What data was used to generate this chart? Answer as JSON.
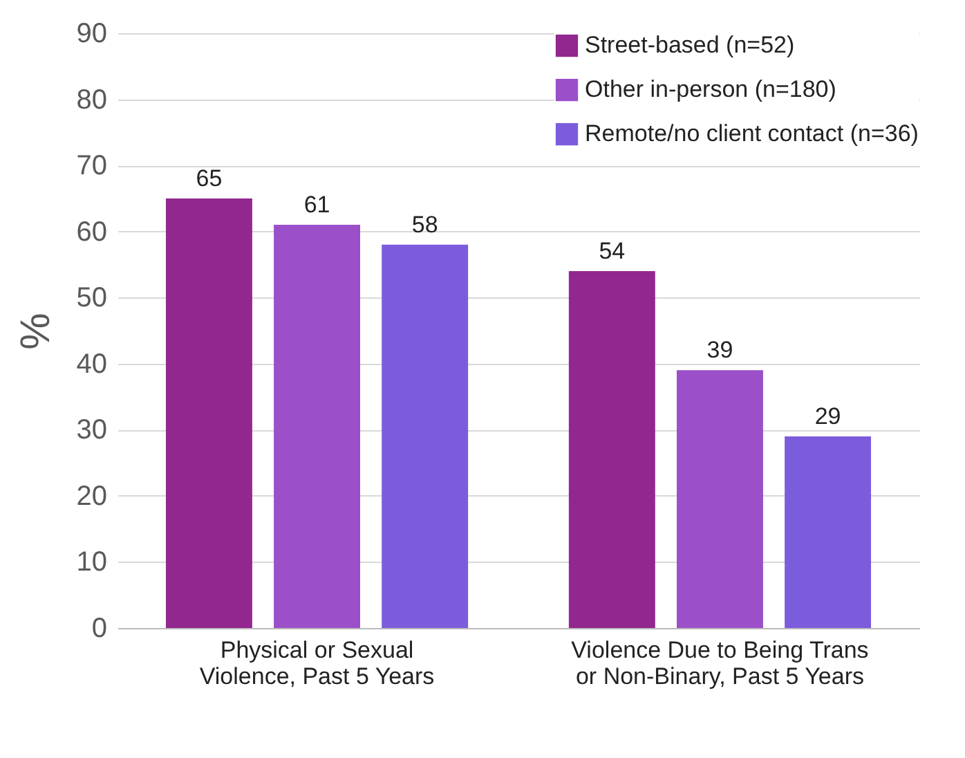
{
  "chart_data": {
    "type": "bar",
    "categories": [
      "Physical or Sexual Violence, Past 5 Years",
      "Violence Due to Being Trans or Non-Binary, Past 5 Years"
    ],
    "ylabel": "%",
    "series": [
      {
        "name": "Street-based (n=52)",
        "color": "#92278f",
        "values": [
          65,
          54
        ]
      },
      {
        "name": "Other in-person (n=180)",
        "color": "#9b4fc9",
        "values": [
          61,
          39
        ]
      },
      {
        "name": "Remote/no client contact (n=36)",
        "color": "#7b5cdc",
        "values": [
          58,
          29
        ]
      }
    ],
    "ylim": [
      0,
      90
    ],
    "yticks": [
      0,
      10,
      20,
      30,
      40,
      50,
      60,
      70,
      80,
      90
    ],
    "grid": "y",
    "legend": "top right",
    "data_labels": true
  }
}
